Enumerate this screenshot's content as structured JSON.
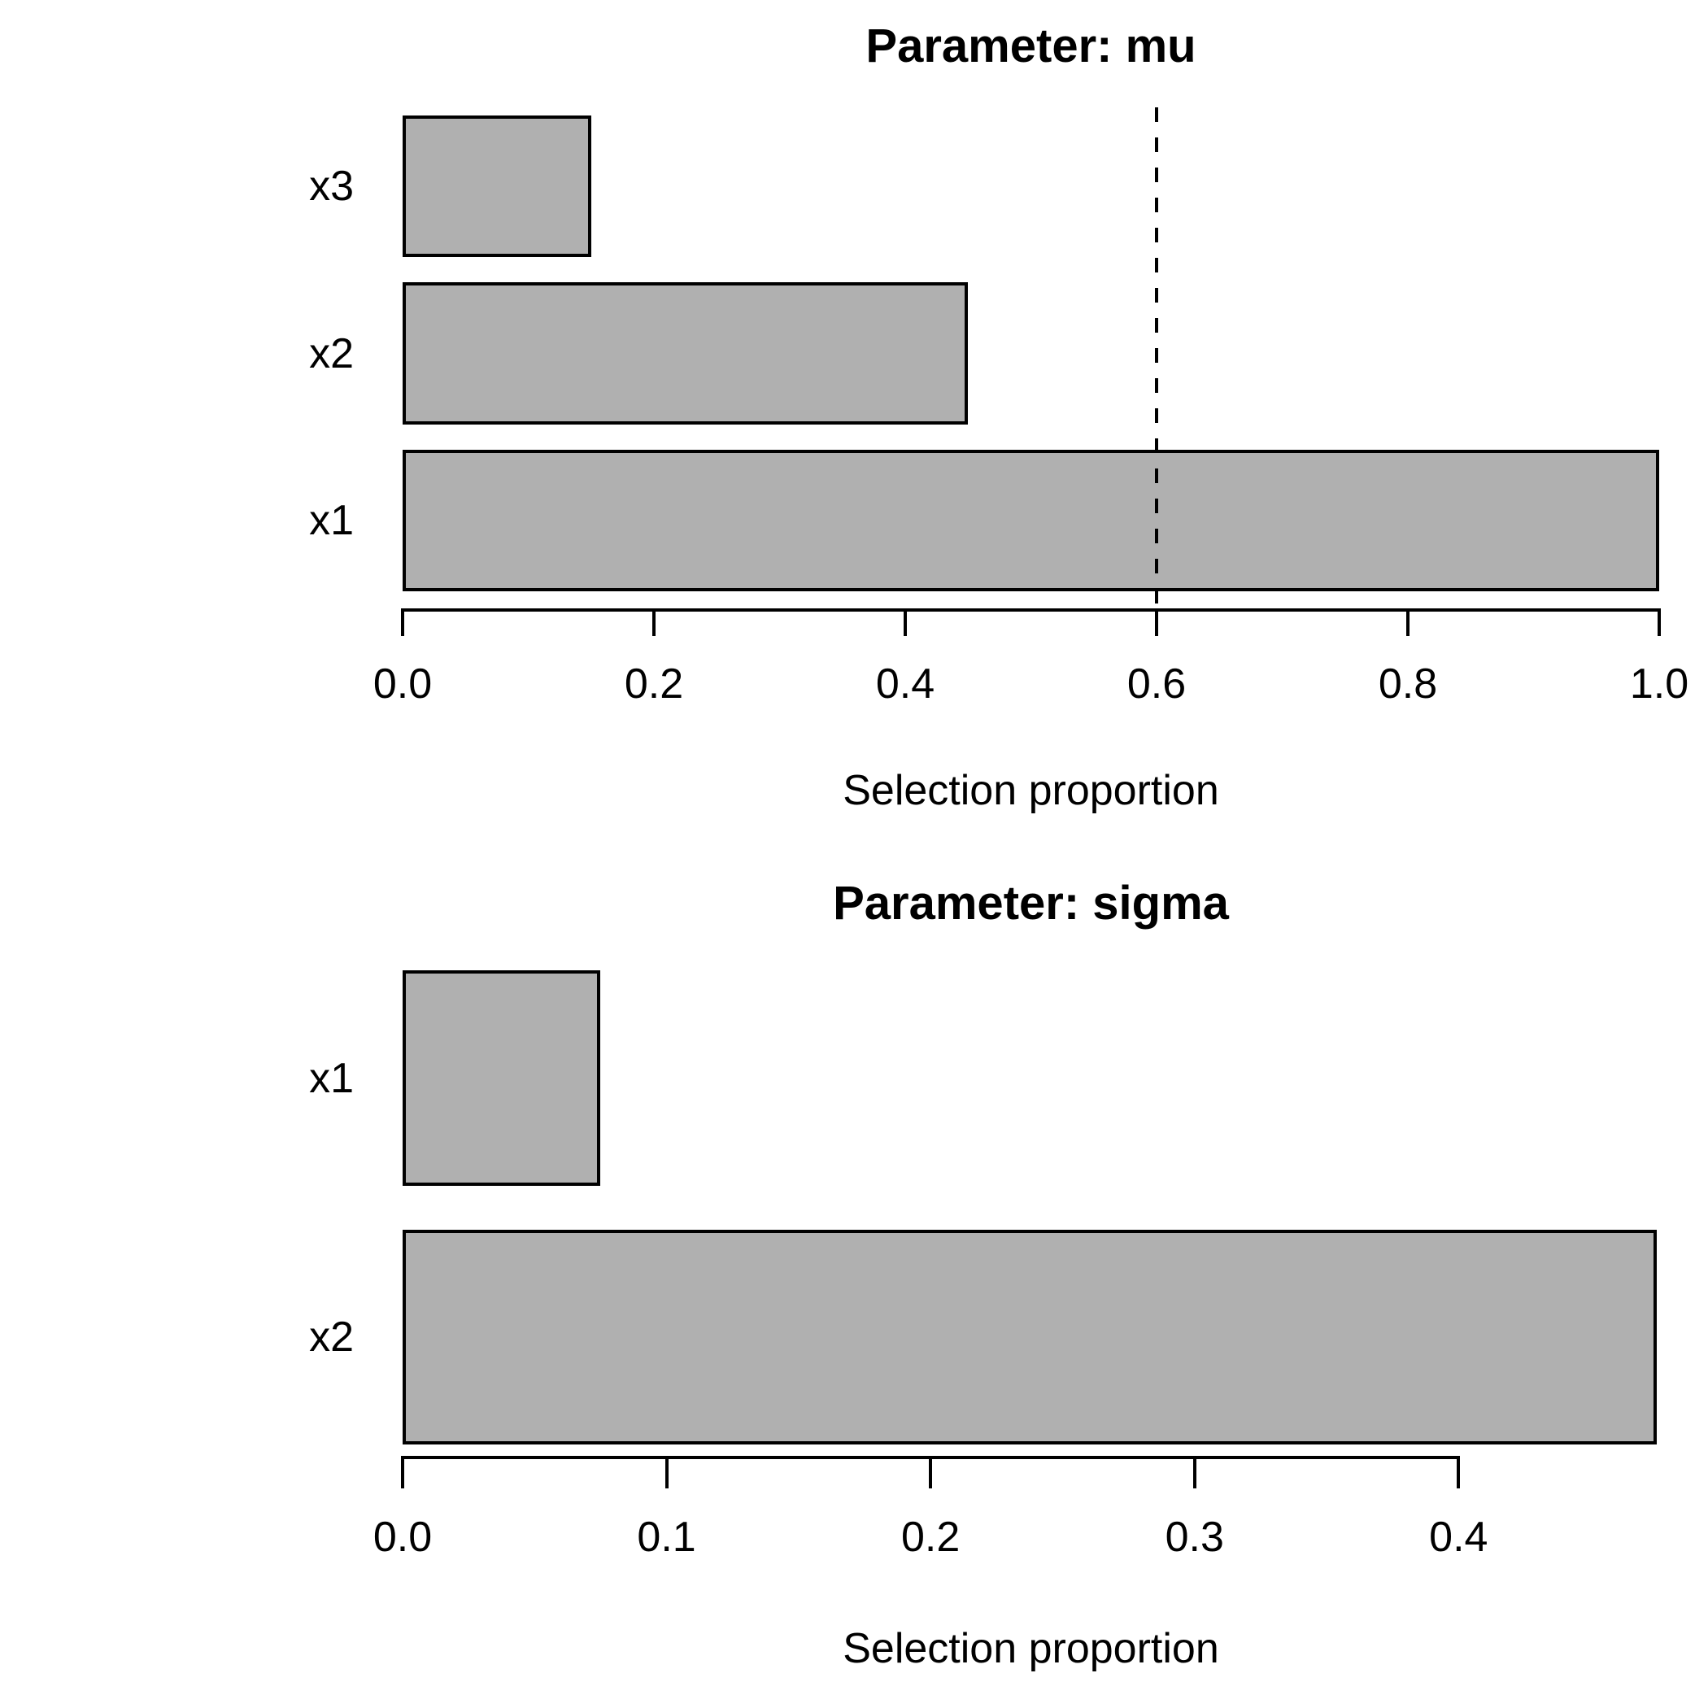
{
  "page": {
    "background": "#FFFFFF"
  },
  "colors": {
    "bar_fill": "#B0B0B0",
    "bar_border": "#000000",
    "text": "#000000",
    "threshold_line": "#000000"
  },
  "chart_data": [
    {
      "type": "bar",
      "orientation": "horizontal",
      "title": "Parameter: mu",
      "xlabel": "Selection proportion",
      "bars": [
        {
          "label": "x3",
          "value": 0.15
        },
        {
          "label": "x2",
          "value": 0.45
        },
        {
          "label": "x1",
          "value": 1.0
        }
      ],
      "xlim": [
        0,
        1.0
      ],
      "xticks": [
        {
          "value": 0.0,
          "label": "0.0"
        },
        {
          "value": 0.2,
          "label": "0.2"
        },
        {
          "value": 0.4,
          "label": "0.4"
        },
        {
          "value": 0.6,
          "label": "0.6"
        },
        {
          "value": 0.8,
          "label": "0.8"
        },
        {
          "value": 1.0,
          "label": "1.0"
        }
      ],
      "axis_drawn_range": [
        0,
        1.0
      ],
      "vline": {
        "value": 0.6,
        "style": "dashed"
      },
      "grid": false,
      "legend": null
    },
    {
      "type": "bar",
      "orientation": "horizontal",
      "title": "Parameter: sigma",
      "xlabel": "Selection proportion",
      "bars": [
        {
          "label": "x1",
          "value": 0.075
        },
        {
          "label": "x2",
          "value": 0.475
        }
      ],
      "xlim": [
        0,
        0.476
      ],
      "xticks": [
        {
          "value": 0.0,
          "label": "0.0"
        },
        {
          "value": 0.1,
          "label": "0.1"
        },
        {
          "value": 0.2,
          "label": "0.2"
        },
        {
          "value": 0.3,
          "label": "0.3"
        },
        {
          "value": 0.4,
          "label": "0.4"
        }
      ],
      "axis_drawn_range": [
        0,
        0.4
      ],
      "vline": null,
      "grid": false,
      "legend": null
    }
  ]
}
